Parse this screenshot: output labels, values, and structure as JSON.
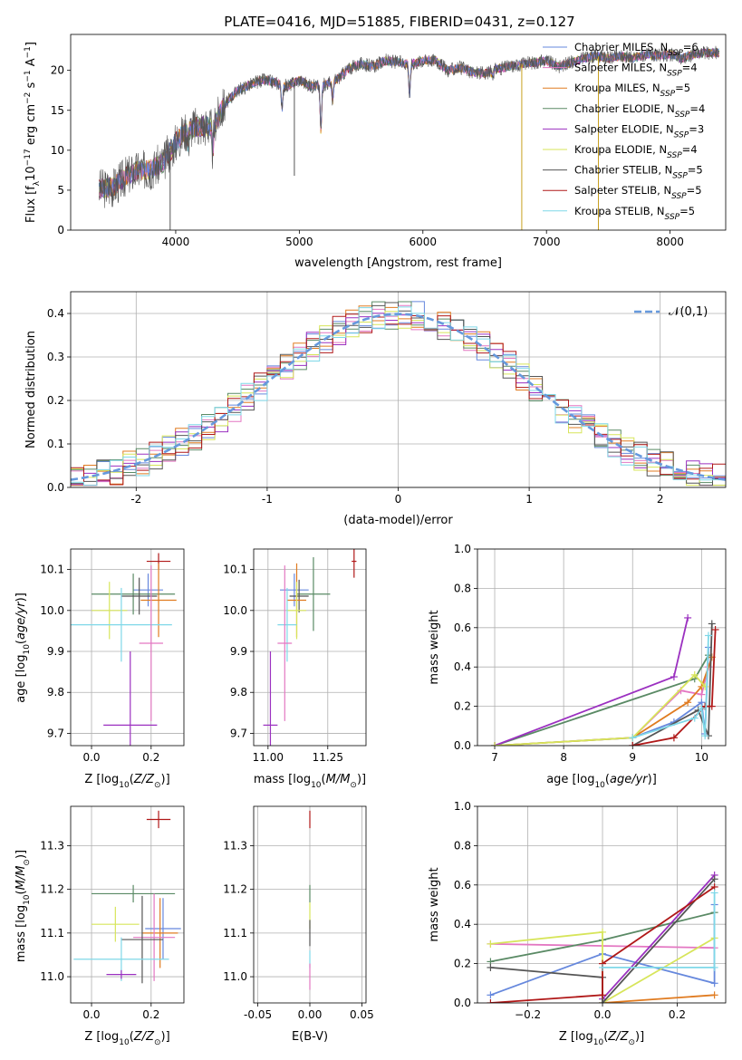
{
  "figure_title": "PLATE=0416, MJD=51885, FIBERID=0431, z=0.127",
  "colors": {
    "Chabrier MILES": "#6688dd",
    "Salpeter MILES": "#e377c2",
    "Kroupa MILES": "#e07b20",
    "Chabrier ELODIE": "#5a8a65",
    "Salpeter ELODIE": "#9b30c0",
    "Kroupa ELODIE": "#d7e55a",
    "Chabrier STELIB": "#555555",
    "Salpeter STELIB": "#b01818",
    "Kroupa STELIB": "#7fd8e8",
    "normal": "#6699dd"
  },
  "chart_data": [
    {
      "id": "spectrum",
      "type": "line",
      "title": "PLATE=0416, MJD=51885, FIBERID=0431, z=0.127",
      "xlabel": "wavelength [Angstrom, rest frame]",
      "ylabel": "Flux [f_λ 10^-17 erg cm^-2 s^-1 A^-1]",
      "xlim": [
        3150,
        8450
      ],
      "ylim": [
        0,
        24.5
      ],
      "xticks": [
        4000,
        5000,
        6000,
        7000,
        8000
      ],
      "yticks": [
        0,
        5,
        10,
        15,
        20
      ],
      "grid": false,
      "legend_position": "top-right",
      "legend": [
        {
          "name": "Chabrier MILES",
          "label": "Chabrier MILES, N_SSP=6"
        },
        {
          "name": "Salpeter MILES",
          "label": "Salpeter MILES, N_SSP=4"
        },
        {
          "name": "Kroupa MILES",
          "label": "Kroupa MILES, N_SSP=5"
        },
        {
          "name": "Chabrier ELODIE",
          "label": "Chabrier ELODIE, N_SSP=4"
        },
        {
          "name": "Salpeter ELODIE",
          "label": "Salpeter ELODIE, N_SSP=3"
        },
        {
          "name": "Kroupa ELODIE",
          "label": "Kroupa ELODIE, N_SSP=4"
        },
        {
          "name": "Chabrier STELIB",
          "label": "Chabrier STELIB, N_SSP=5"
        },
        {
          "name": "Salpeter STELIB",
          "label": "Salpeter STELIB, N_SSP=5"
        },
        {
          "name": "Kroupa STELIB",
          "label": "Kroupa STELIB, N_SSP=5"
        }
      ],
      "continuum": {
        "x": [
          3380,
          3500,
          3600,
          3700,
          3800,
          3900,
          4000,
          4100,
          4200,
          4300,
          4400,
          4500,
          4600,
          4700,
          4800,
          4900,
          5000,
          5100,
          5200,
          5300,
          5400,
          5500,
          5600,
          5700,
          5800,
          5900,
          6000,
          6100,
          6200,
          6300,
          6400,
          6500,
          6600,
          6700,
          6800,
          6900,
          7000,
          7100,
          7200,
          7300,
          7400,
          7500,
          7600,
          7700,
          7800,
          7900,
          8000,
          8100,
          8200,
          8300
        ],
        "flux": [
          5.2,
          5.4,
          6.8,
          7.5,
          7.6,
          8.5,
          11.0,
          12.8,
          13.0,
          13.0,
          15.8,
          17.5,
          18.2,
          18.8,
          18.5,
          18.0,
          18.8,
          18.0,
          18.2,
          18.8,
          20.2,
          20.8,
          20.5,
          21.2,
          21.0,
          20.8,
          21.2,
          21.3,
          20.0,
          20.3,
          19.8,
          19.6,
          20.2,
          20.5,
          20.8,
          21.0,
          21.2,
          20.5,
          21.0,
          21.5,
          21.8,
          21.5,
          21.8,
          21.5,
          22.0,
          21.8,
          22.0,
          21.5,
          22.0,
          22.2
        ]
      },
      "dips": [
        {
          "x": 3934,
          "flux": 9.5
        },
        {
          "x": 3969,
          "flux": 10.2
        },
        {
          "x": 4102,
          "flux": 11.0
        },
        {
          "x": 4300,
          "flux": 9.8
        },
        {
          "x": 4861,
          "flux": 15.0
        },
        {
          "x": 5175,
          "flux": 12.5
        },
        {
          "x": 5270,
          "flux": 16.2
        },
        {
          "x": 5892,
          "flux": 16.8
        },
        {
          "x": 6563,
          "flux": 19.2
        }
      ],
      "spikes": [
        {
          "x": 4960,
          "flux": 6.8
        },
        {
          "x": 3955,
          "flux": 0.0
        },
        {
          "x": 6800,
          "flux": 0.0
        },
        {
          "x": 7420,
          "flux": 0.0
        }
      ]
    },
    {
      "id": "residuals",
      "type": "bar",
      "xlabel": "(data-model)/error",
      "ylabel": "Normed distribution",
      "xlim": [
        -2.5,
        2.5
      ],
      "ylim": [
        0,
        0.45
      ],
      "xticks": [
        -2,
        -1,
        0,
        1,
        2
      ],
      "yticks": [
        0.0,
        0.1,
        0.2,
        0.3,
        0.4
      ],
      "grid": true,
      "legend_position": "top-right",
      "legend_label": "𝒩(0,1)",
      "bin_width": 0.1,
      "bins_from": -2.5,
      "normal": {
        "mean": 0,
        "sigma": 1
      }
    },
    {
      "id": "age_vs_Z",
      "type": "scatter",
      "xlabel": "Z [log10(Z/Z☉)]",
      "ylabel": "age [log10(age/yr)]",
      "xlim": [
        -0.07,
        0.31
      ],
      "ylim": [
        9.67,
        10.15
      ],
      "xticks": [
        0.0,
        0.2
      ],
      "yticks": [
        9.7,
        9.8,
        9.9,
        10.0,
        10.1
      ],
      "grid": true,
      "points": [
        {
          "model": "Salpeter STELIB",
          "x": 0.225,
          "y": 10.12,
          "xerr": [
            0.04,
            0.04
          ],
          "yerr": [
            0.02,
            0.02
          ]
        },
        {
          "model": "Chabrier MILES",
          "x": 0.19,
          "y": 10.05,
          "xerr": [
            0.05,
            0.05
          ],
          "yerr": [
            0.04,
            0.04
          ]
        },
        {
          "model": "Chabrier ELODIE",
          "x": 0.14,
          "y": 10.04,
          "xerr": [
            0.14,
            0.14
          ],
          "yerr": [
            0.05,
            0.05
          ]
        },
        {
          "model": "Chabrier STELIB",
          "x": 0.16,
          "y": 10.035,
          "xerr": [
            0.06,
            0.06
          ],
          "yerr": [
            0.045,
            0.045
          ]
        },
        {
          "model": "Kroupa MILES",
          "x": 0.225,
          "y": 10.025,
          "xerr": [
            0.06,
            0.06
          ],
          "yerr": [
            0.09,
            0.09
          ]
        },
        {
          "model": "Kroupa ELODIE",
          "x": 0.06,
          "y": 10.0,
          "xerr": [
            0.06,
            0.06
          ],
          "yerr": [
            0.07,
            0.07
          ]
        },
        {
          "model": "Kroupa STELIB",
          "x": 0.1,
          "y": 9.965,
          "xerr": [
            0.17,
            0.17
          ],
          "yerr": [
            0.09,
            0.09
          ]
        },
        {
          "model": "Salpeter MILES",
          "x": 0.2,
          "y": 9.92,
          "xerr": [
            0.04,
            0.04
          ],
          "yerr": [
            0.19,
            0.19
          ]
        },
        {
          "model": "Salpeter ELODIE",
          "x": 0.13,
          "y": 9.72,
          "xerr": [
            0.09,
            0.09
          ],
          "yerr": [
            0.18,
            0.18
          ]
        }
      ]
    },
    {
      "id": "age_vs_mass",
      "type": "scatter",
      "xlabel": "mass [log10(M/M☉)]",
      "ylabel": "",
      "xlim": [
        10.94,
        11.41
      ],
      "ylim": [
        9.67,
        10.15
      ],
      "xticks": [
        11.0,
        11.25
      ],
      "yticks": [
        9.7,
        9.8,
        9.9,
        10.0,
        10.1
      ],
      "grid": true,
      "points": [
        {
          "model": "Salpeter STELIB",
          "x": 11.36,
          "y": 10.12,
          "xerr": [
            0.01,
            0.01
          ],
          "yerr": [
            0.04,
            0.04
          ]
        },
        {
          "model": "Chabrier MILES",
          "x": 11.11,
          "y": 10.05,
          "xerr": [
            0.06,
            0.06
          ],
          "yerr": [
            0.04,
            0.04
          ]
        },
        {
          "model": "Chabrier ELODIE",
          "x": 11.19,
          "y": 10.04,
          "xerr": [
            0.07,
            0.07
          ],
          "yerr": [
            0.09,
            0.09
          ]
        },
        {
          "model": "Chabrier STELIB",
          "x": 11.13,
          "y": 10.035,
          "xerr": [
            0.04,
            0.04
          ],
          "yerr": [
            0.04,
            0.04
          ]
        },
        {
          "model": "Kroupa MILES",
          "x": 11.12,
          "y": 10.025,
          "xerr": [
            0.04,
            0.04
          ],
          "yerr": [
            0.09,
            0.09
          ]
        },
        {
          "model": "Kroupa ELODIE",
          "x": 11.12,
          "y": 10.0,
          "xerr": [
            0.04,
            0.04
          ],
          "yerr": [
            0.07,
            0.07
          ]
        },
        {
          "model": "Kroupa STELIB",
          "x": 11.08,
          "y": 9.965,
          "xerr": [
            0.04,
            0.04
          ],
          "yerr": [
            0.09,
            0.09
          ]
        },
        {
          "model": "Salpeter MILES",
          "x": 11.07,
          "y": 9.92,
          "xerr": [
            0.03,
            0.03
          ],
          "yerr": [
            0.19,
            0.19
          ]
        },
        {
          "model": "Salpeter ELODIE",
          "x": 11.01,
          "y": 9.72,
          "xerr": [
            0.03,
            0.03
          ],
          "yerr": [
            0.18,
            0.18
          ]
        }
      ]
    },
    {
      "id": "weight_vs_age",
      "type": "line",
      "xlabel": "age [log10(age/yr)]",
      "ylabel": "mass weight",
      "xlim": [
        6.75,
        10.35
      ],
      "ylim": [
        0,
        1.0
      ],
      "xticks": [
        7,
        8,
        9,
        10
      ],
      "yticks": [
        0.0,
        0.2,
        0.4,
        0.6,
        0.8,
        1.0
      ],
      "grid": true,
      "series": [
        {
          "model": "Chabrier MILES",
          "x": [
            7.0,
            9.0,
            9.6,
            10.0,
            10.05,
            10.1
          ],
          "y": [
            0.0,
            0.04,
            0.12,
            0.22,
            0.06,
            0.5
          ]
        },
        {
          "model": "Salpeter MILES",
          "x": [
            9.0,
            9.7,
            10.0,
            10.1
          ],
          "y": [
            0.04,
            0.28,
            0.26,
            0.4
          ]
        },
        {
          "model": "Kroupa MILES",
          "x": [
            7.0,
            9.0,
            9.8,
            10.0,
            10.15
          ],
          "y": [
            0.0,
            0.04,
            0.22,
            0.3,
            0.45
          ]
        },
        {
          "model": "Chabrier ELODIE",
          "x": [
            7.0,
            9.9,
            10.1
          ],
          "y": [
            0.0,
            0.34,
            0.46
          ]
        },
        {
          "model": "Salpeter ELODIE",
          "x": [
            7.0,
            9.6,
            9.8
          ],
          "y": [
            0.0,
            0.35,
            0.65
          ]
        },
        {
          "model": "Kroupa ELODIE",
          "x": [
            7.0,
            9.0,
            9.9,
            10.05
          ],
          "y": [
            0.0,
            0.04,
            0.36,
            0.3
          ]
        },
        {
          "model": "Chabrier STELIB",
          "x": [
            9.0,
            9.95,
            10.1,
            10.15
          ],
          "y": [
            0.0,
            0.18,
            0.05,
            0.62
          ]
        },
        {
          "model": "Salpeter STELIB",
          "x": [
            9.0,
            9.6,
            10.05,
            10.15,
            10.2
          ],
          "y": [
            0.0,
            0.04,
            0.2,
            0.2,
            0.59
          ]
        },
        {
          "model": "Kroupa STELIB",
          "x": [
            9.0,
            9.9,
            10.0,
            10.05,
            10.1
          ],
          "y": [
            0.04,
            0.14,
            0.19,
            0.05,
            0.56
          ]
        }
      ]
    },
    {
      "id": "mass_vs_Z",
      "type": "scatter",
      "xlabel": "Z [log10(Z/Z☉)]",
      "ylabel": "mass [log10(M/M☉)]",
      "xlim": [
        -0.07,
        0.31
      ],
      "ylim": [
        10.94,
        11.39
      ],
      "xticks": [
        0.0,
        0.2
      ],
      "yticks": [
        11.0,
        11.1,
        11.2,
        11.3
      ],
      "grid": true,
      "points": [
        {
          "model": "Salpeter STELIB",
          "x": 0.225,
          "y": 11.36,
          "xerr": [
            0.04,
            0.04
          ],
          "yerr": [
            0.02,
            0.02
          ]
        },
        {
          "model": "Chabrier ELODIE",
          "x": 0.14,
          "y": 11.19,
          "xerr": [
            0.14,
            0.14
          ],
          "yerr": [
            0.02,
            0.02
          ]
        },
        {
          "model": "Kroupa ELODIE",
          "x": 0.08,
          "y": 11.12,
          "xerr": [
            0.08,
            0.08
          ],
          "yerr": [
            0.04,
            0.04
          ]
        },
        {
          "model": "Chabrier MILES",
          "x": 0.24,
          "y": 11.11,
          "xerr": [
            0.06,
            0.06
          ],
          "yerr": [
            0.07,
            0.07
          ]
        },
        {
          "model": "Kroupa MILES",
          "x": 0.23,
          "y": 11.1,
          "xerr": [
            0.06,
            0.06
          ],
          "yerr": [
            0.08,
            0.08
          ]
        },
        {
          "model": "Salpeter MILES",
          "x": 0.21,
          "y": 11.09,
          "xerr": [
            0.07,
            0.07
          ],
          "yerr": [
            0.1,
            0.1
          ]
        },
        {
          "model": "Chabrier STELIB",
          "x": 0.17,
          "y": 11.085,
          "xerr": [
            0.07,
            0.07
          ],
          "yerr": [
            0.1,
            0.1
          ]
        },
        {
          "model": "Kroupa STELIB",
          "x": 0.1,
          "y": 11.04,
          "xerr": [
            0.16,
            0.16
          ],
          "yerr": [
            0.05,
            0.05
          ]
        },
        {
          "model": "Salpeter ELODIE",
          "x": 0.1,
          "y": 11.005,
          "xerr": [
            0.05,
            0.05
          ],
          "yerr": [
            0.01,
            0.01
          ]
        }
      ]
    },
    {
      "id": "mass_vs_ebv",
      "type": "scatter",
      "xlabel": "E(B-V)",
      "ylabel": "",
      "xlim": [
        -0.054,
        0.054
      ],
      "ylim": [
        10.94,
        11.39
      ],
      "xticks": [
        -0.05,
        0.0,
        0.05
      ],
      "yticks": [
        11.0,
        11.1,
        11.2,
        11.3
      ],
      "grid": true,
      "points": [
        {
          "model": "Salpeter STELIB",
          "x": 0.0,
          "y": 11.36,
          "xerr": [
            0.0,
            0.0
          ],
          "yerr": [
            0.02,
            0.02
          ]
        },
        {
          "model": "Chabrier ELODIE",
          "x": 0.0,
          "y": 11.19,
          "xerr": [
            0.0,
            0.0
          ],
          "yerr": [
            0.02,
            0.02
          ]
        },
        {
          "model": "Kroupa ELODIE",
          "x": 0.0,
          "y": 11.14,
          "xerr": [
            0.0,
            0.0
          ],
          "yerr": [
            0.03,
            0.03
          ]
        },
        {
          "model": "Chabrier STELIB",
          "x": 0.0,
          "y": 11.1,
          "xerr": [
            0.0,
            0.0
          ],
          "yerr": [
            0.03,
            0.03
          ]
        },
        {
          "model": "Kroupa STELIB",
          "x": 0.0,
          "y": 11.04,
          "xerr": [
            0.0,
            0.0
          ],
          "yerr": [
            0.02,
            0.02
          ]
        },
        {
          "model": "Salpeter MILES",
          "x": 0.0,
          "y": 11.0,
          "xerr": [
            0.0,
            0.0
          ],
          "yerr": [
            0.03,
            0.03
          ]
        }
      ]
    },
    {
      "id": "weight_vs_Z",
      "type": "line",
      "xlabel": "Z [log10(Z/Z☉)]",
      "ylabel": "mass weight",
      "xlim": [
        -0.335,
        0.33
      ],
      "ylim": [
        0,
        1.0
      ],
      "xticks": [
        -0.2,
        0.0,
        0.2
      ],
      "yticks": [
        0.0,
        0.2,
        0.4,
        0.6,
        0.8,
        1.0
      ],
      "grid": true,
      "series": [
        {
          "model": "Chabrier MILES",
          "x": [
            -0.3,
            0.0,
            0.3,
            0.3
          ],
          "y": [
            0.04,
            0.25,
            0.1,
            0.5
          ]
        },
        {
          "model": "Salpeter MILES",
          "x": [
            -0.3,
            0.3
          ],
          "y": [
            0.3,
            0.28
          ]
        },
        {
          "model": "Kroupa MILES",
          "x": [
            0.0,
            0.3
          ],
          "y": [
            0.0,
            0.04
          ]
        },
        {
          "model": "Chabrier ELODIE",
          "x": [
            -0.3,
            0.0,
            0.3
          ],
          "y": [
            0.21,
            0.32,
            0.46
          ]
        },
        {
          "model": "Salpeter ELODIE",
          "x": [
            0.0,
            0.3
          ],
          "y": [
            0.02,
            0.65
          ]
        },
        {
          "model": "Kroupa ELODIE",
          "x": [
            -0.3,
            0.0,
            0.0,
            0.3
          ],
          "y": [
            0.3,
            0.36,
            0.0,
            0.33
          ]
        },
        {
          "model": "Chabrier STELIB",
          "x": [
            -0.3,
            0.0,
            0.0,
            0.3
          ],
          "y": [
            0.18,
            0.13,
            0.0,
            0.63
          ]
        },
        {
          "model": "Salpeter STELIB",
          "x": [
            -0.3,
            0.0,
            0.0,
            0.3
          ],
          "y": [
            0.0,
            0.04,
            0.2,
            0.59
          ]
        },
        {
          "model": "Kroupa STELIB",
          "x": [
            0.0,
            0.3,
            0.3
          ],
          "y": [
            0.18,
            0.18,
            0.56
          ]
        }
      ]
    }
  ]
}
